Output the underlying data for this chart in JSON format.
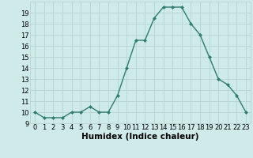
{
  "x": [
    0,
    1,
    2,
    3,
    4,
    5,
    6,
    7,
    8,
    9,
    10,
    11,
    12,
    13,
    14,
    15,
    16,
    17,
    18,
    19,
    20,
    21,
    22,
    23
  ],
  "y": [
    10,
    9.5,
    9.5,
    9.5,
    10,
    10,
    10.5,
    10,
    10,
    11.5,
    14,
    16.5,
    16.5,
    18.5,
    19.5,
    19.5,
    19.5,
    18,
    17,
    15,
    13,
    12.5,
    11.5,
    10
  ],
  "line_color": "#2e7d6e",
  "marker": "D",
  "marker_size": 2.0,
  "bg_color": "#ceeae9",
  "grid_color": "#b8d4d2",
  "xlabel": "Humidex (Indice chaleur)",
  "xlim": [
    -0.5,
    23.5
  ],
  "ylim": [
    9,
    20
  ],
  "yticks": [
    9,
    10,
    11,
    12,
    13,
    14,
    15,
    16,
    17,
    18,
    19
  ],
  "xticks": [
    0,
    1,
    2,
    3,
    4,
    5,
    6,
    7,
    8,
    9,
    10,
    11,
    12,
    13,
    14,
    15,
    16,
    17,
    18,
    19,
    20,
    21,
    22,
    23
  ],
  "tick_label_fontsize": 6.0,
  "xlabel_fontsize": 7.5,
  "linewidth": 1.0
}
